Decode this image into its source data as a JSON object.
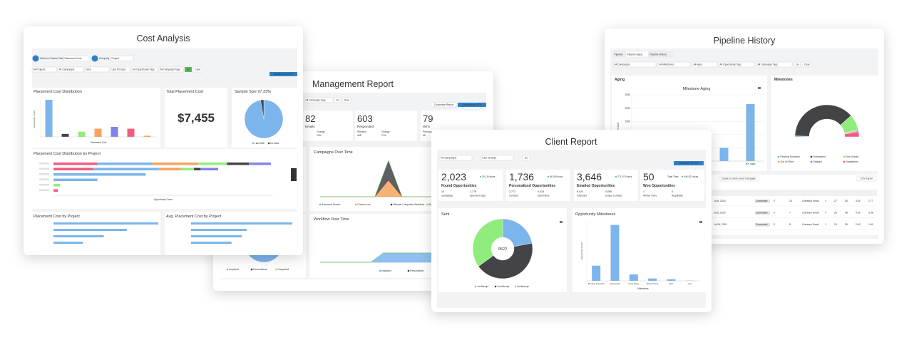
{
  "pipeline_history": {
    "title": "Pipeline History",
    "tabs": [
      "Pipeline",
      "Pipeline Aging",
      "Pipeline History"
    ],
    "filters": [
      "All Campaigns",
      "All Milestones",
      "All Ages",
      "All Opportunity Tags",
      "All Campaign Tags"
    ],
    "go": "Go",
    "clear": "Clear",
    "aging": {
      "panel_title": "Aging",
      "type": "bar",
      "title": "Milestone Aging",
      "y_label": "Opportunity Count",
      "categories": [
        null,
        null,
        null,
        null,
        "90+ days"
      ],
      "values": [
        300,
        400,
        350,
        500,
        2150
      ],
      "color": "#7cb5ec",
      "ylim": [
        0,
        2500
      ],
      "yticks": [
        0,
        500,
        1000,
        1500,
        2000,
        2500
      ]
    },
    "milestones": {
      "panel_title": "Milestones",
      "type": "pie",
      "categories": [
        "Pending Outreach",
        "Outreached",
        "Not a Reply",
        "Out of Office",
        "Delayed",
        "Negotiation"
      ],
      "values": [
        1,
        76,
        16,
        1,
        1,
        5
      ],
      "colors": [
        "#7cb5ec",
        "#434348",
        "#90ed7d",
        "#f7a35c",
        "#8085e9",
        "#f15c80"
      ]
    },
    "toolbar": {
      "create": "Create a Client-Level Campaign",
      "export": "CSV Export"
    },
    "table_rows": [
      [
        "Jul 8, 2020",
        "Connected",
        "0",
        "15",
        "Outreach Email",
        "Y",
        "27",
        "35",
        "3.60",
        "1.77"
      ],
      [
        "Jul 6, 2020",
        "Connected",
        "0",
        "7",
        "Outreach Email",
        "Y",
        "25",
        "48",
        "4.60",
        "3.48"
      ],
      [
        "Jul 26, 2020",
        "Connected",
        "0",
        "8",
        "Outreach Email",
        "Y",
        "13",
        "28",
        "2.60",
        "1.50"
      ]
    ]
  },
  "management_report": {
    "title": "Management Report",
    "filters": {
      "tags": "All Campaign Tags",
      "go": "Go",
      "clear": "Clear",
      "customize": "Customize Report",
      "download": "Download as PDF"
    },
    "stats": [
      {
        "value": "82",
        "label": "Emails",
        "subs": [
          [
            "Change",
            "13%"
          ]
        ]
      },
      {
        "value": "603",
        "label": "Responded",
        "subs": [
          [
            "Previous",
            "468"
          ],
          [
            "Change",
            "17%"
          ]
        ]
      },
      {
        "value": "79",
        "label": "Wins",
        "subs": [
          [
            "Previous",
            "65"
          ]
        ]
      }
    ],
    "status": {
      "type": "pie",
      "categories": [
        "Impacted",
        "Personalized",
        "Completed"
      ],
      "values": [
        70,
        15,
        15
      ],
      "colors": [
        "#7cb5ec",
        "#434348",
        "#90ed7d"
      ]
    },
    "campaigns": {
      "type": "area",
      "title": "Campaigns Over Time",
      "ylim": [
        0,
        100
      ],
      "series": [
        {
          "name": "Advanced Search",
          "color": "#7cb5ec",
          "values": [
            0,
            0,
            0,
            0,
            0,
            0,
            0,
            0,
            0,
            0,
            0,
            0,
            0
          ]
        },
        {
          "name": "Chance.com",
          "color": "#f7a35c",
          "values": [
            0,
            0,
            0,
            0,
            0,
            45,
            0,
            0,
            0,
            0,
            0,
            0,
            0
          ]
        },
        {
          "name": "Ultimate Competitor Backlinks",
          "color": "#434348",
          "values": [
            0,
            0,
            0,
            0,
            0,
            55,
            0,
            0,
            0,
            0,
            0,
            0,
            0
          ]
        },
        {
          "name": "Blogger Outreach",
          "color": "#90ed7d",
          "values": [
            0,
            0,
            0,
            0,
            0,
            0,
            0,
            0,
            0,
            0,
            0,
            0,
            0
          ]
        }
      ]
    },
    "workflow": {
      "type": "area",
      "title": "Workflow Over Time",
      "ylim": [
        0,
        40
      ],
      "series": [
        {
          "name": "Impacted",
          "color": "#7cb5ec",
          "values": [
            0,
            0,
            0,
            0,
            0,
            10,
            10,
            10,
            10,
            10,
            10,
            10,
            10,
            10
          ]
        },
        {
          "name": "Personalized",
          "color": "#434348",
          "values": [
            0,
            0,
            0,
            0,
            0,
            0,
            0,
            0,
            0,
            0,
            0,
            0,
            0,
            0
          ]
        },
        {
          "name": "Completed",
          "color": "#90ed7d",
          "values": [
            0,
            0,
            0,
            0,
            0,
            0,
            0,
            0,
            0,
            0,
            0,
            0,
            0,
            0
          ]
        }
      ]
    }
  },
  "cost_analysis": {
    "title": "Cost Analysis",
    "filters": {
      "custom_field_label": "Select a Custom Field",
      "custom_field": "Placement Cost",
      "group_by_label": "Group By",
      "group_by": "Project",
      "selects": [
        "All Projects",
        "All Campaigns",
        "Sent",
        "Last 90 Days",
        "All Opportunity Tags",
        "All Campaign Tags"
      ],
      "go": "Go",
      "clear": "Clear",
      "download": "Download as PDF"
    },
    "distribution": {
      "type": "bar",
      "title": "Placement Cost Distribution",
      "x_label": "Placement Cost",
      "y_label": "Opportunity Count",
      "values": [
        100,
        8,
        14,
        22,
        27,
        22,
        3
      ],
      "colors": [
        "#7cb5ec",
        "#434348",
        "#90ed7d",
        "#f7a35c",
        "#8085e9",
        "#f15c80",
        "#f7a35c"
      ],
      "ylim": [
        0,
        100
      ]
    },
    "total": {
      "title": "Total Placement Cost",
      "value": "$7,455"
    },
    "sample": {
      "type": "pie",
      "title": "Sample Size 97.33%",
      "categories": [
        "Has Data",
        "No Data"
      ],
      "values": [
        97.33,
        2.67
      ],
      "colors": [
        "#7cb5ec",
        "#434348"
      ]
    },
    "by_project": {
      "type": "bar",
      "orientation": "horizontal",
      "stacked": true,
      "title": "Placement Cost Distribution by Project",
      "x_label": "Opportunity Count",
      "xlim": [
        0,
        100
      ],
      "series": [
        {
          "color": "#f15c80",
          "values": [
            20,
            18,
            0,
            0,
            0,
            2
          ]
        },
        {
          "color": "#7cb5ec",
          "values": [
            25,
            30,
            42,
            20,
            0,
            0
          ]
        },
        {
          "color": "#f7a35c",
          "values": [
            21,
            10,
            0,
            0,
            0,
            0
          ]
        },
        {
          "color": "#90ed7d",
          "values": [
            13,
            6,
            0,
            0,
            3,
            0
          ]
        },
        {
          "color": "#434348",
          "values": [
            10,
            3,
            0,
            0,
            0,
            0
          ]
        },
        {
          "color": "#8085e9",
          "values": [
            10,
            8,
            0,
            0,
            0,
            0
          ]
        }
      ]
    },
    "cost_by_project": {
      "type": "bar",
      "orientation": "horizontal",
      "title": "Placement Cost by Project",
      "values": [
        100,
        70,
        48,
        28
      ],
      "color": "#7cb5ec",
      "xlim": [
        0,
        100
      ]
    },
    "avg_by_project": {
      "type": "bar",
      "orientation": "horizontal",
      "title": "Avg. Placement Cost by Project",
      "values": [
        100,
        55,
        50,
        40
      ],
      "color": "#7cb5ec",
      "xlim": [
        0,
        100
      ]
    }
  },
  "client_report": {
    "title": "Client Report",
    "filters": {
      "campaigns": "All Campaigns",
      "range": "Last 30 Days",
      "go": "Go",
      "download": "Download as PDF"
    },
    "stats": [
      {
        "value": "2,023",
        "label": "Found Opportunities",
        "badge": "30.15 Hours",
        "subs": [
          [
            "15",
            "Campaigns"
          ],
          [
            "1,776",
            "Approved Opps"
          ]
        ]
      },
      {
        "value": "1,736",
        "label": "Personalized Opportunities",
        "badge": "66.38 Hours",
        "subs": [
          [
            "2,772",
            "Contacts"
          ],
          [
            "9,018",
            "Data Points"
          ]
        ]
      },
      {
        "value": "3,646",
        "label": "Emailed Opportunities",
        "badge": "271.57 Hours",
        "subs": [
          [
            "9,024",
            "Total Sent"
          ],
          [
            "4,060",
            "Unique Contacts"
          ]
        ]
      },
      {
        "value": "50",
        "label": "Won Opportunities",
        "badge_label": "Total Time",
        "badge": "444.02 Hours",
        "subs": [
          [
            "1",
            "Winner There"
          ],
          [
            "0",
            "Negotiation"
          ]
        ]
      }
    ],
    "sent": {
      "type": "pie",
      "title": "Sent",
      "center": "9522",
      "categories": [
        "1st Attempt",
        "2nd Attempt",
        "3rd Attempt"
      ],
      "values": [
        22,
        43,
        35
      ],
      "colors": [
        "#7cb5ec",
        "#434348",
        "#90ed7d"
      ]
    },
    "milestones": {
      "type": "bar",
      "title": "Opportunity Milestones",
      "x_label": "Milestones",
      "y_label": "Opportunity Count",
      "categories": [
        "Pending Outreach",
        "Outreached",
        "Not a Reply",
        "Moved There",
        "Won",
        "Lost"
      ],
      "values": [
        380,
        1400,
        160,
        60,
        40,
        5
      ],
      "color": "#7cb5ec",
      "ylim": [
        0,
        1500
      ]
    }
  }
}
